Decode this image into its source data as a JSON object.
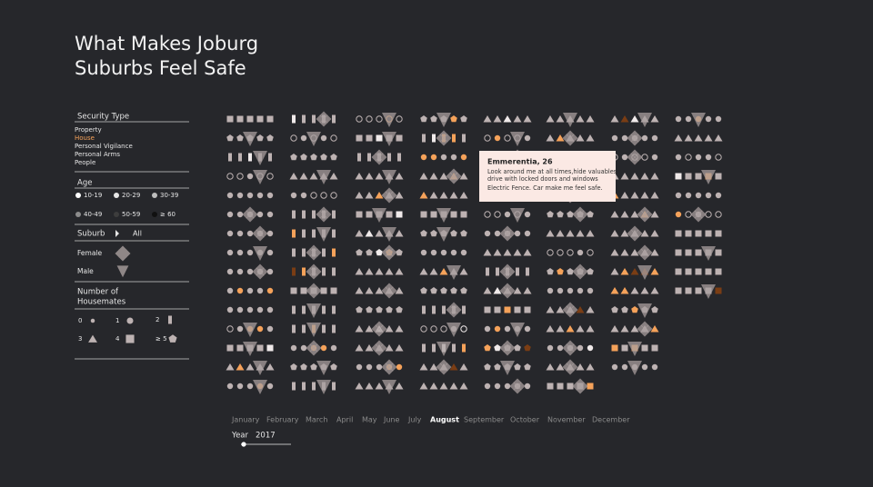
{
  "title": [
    "What Makes Joburg",
    "Suburbs Feel Safe"
  ],
  "legend": {
    "security_type": {
      "title": "Security Type",
      "items": [
        "Property",
        "House",
        "Personal Vigilance",
        "Personal Arms",
        "People"
      ],
      "active": 1
    },
    "age": {
      "title": "Age",
      "items": [
        "10-19",
        "20-29",
        "30-39",
        "40-49",
        "50-59",
        "≥ 60"
      ]
    },
    "suburb": {
      "title": "Suburb",
      "value": "All"
    },
    "gender": [
      "Female",
      "Male"
    ],
    "housemates": {
      "title": [
        "Number of",
        "Housemates"
      ],
      "items": [
        "0",
        "1",
        "2",
        "3",
        "4",
        "≥ 5"
      ]
    }
  },
  "tooltip": {
    "title": "Emmerentia, 26",
    "lines": [
      "Look around me at all times,hide valuables",
      "drive with locked doors and windows"
    ],
    "note": "Electric Fence. Car make me feel safe."
  },
  "months": [
    "January",
    "February",
    "March",
    "April",
    "May",
    "June",
    "July",
    "August",
    "September",
    "October",
    "November",
    "December"
  ],
  "active_month": 7,
  "year": {
    "label": "Year",
    "value": "2017"
  }
}
